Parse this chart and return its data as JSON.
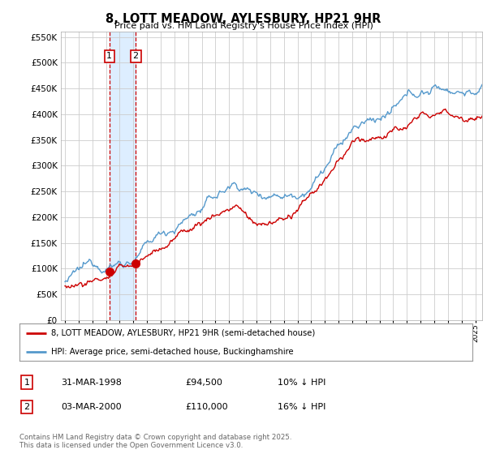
{
  "title": "8, LOTT MEADOW, AYLESBURY, HP21 9HR",
  "subtitle": "Price paid vs. HM Land Registry's House Price Index (HPI)",
  "ytick_vals": [
    0,
    50000,
    100000,
    150000,
    200000,
    250000,
    300000,
    350000,
    400000,
    450000,
    500000,
    550000
  ],
  "ylim": [
    0,
    560000
  ],
  "sale1_x": 1998.25,
  "sale1_y": 94500,
  "sale2_x": 2000.17,
  "sale2_y": 110000,
  "line_red_color": "#cc0000",
  "line_blue_color": "#5599cc",
  "shade_color": "#ddeeff",
  "bg_color": "#ffffff",
  "grid_color": "#cccccc",
  "legend_entry1": "8, LOTT MEADOW, AYLESBURY, HP21 9HR (semi-detached house)",
  "legend_entry2": "HPI: Average price, semi-detached house, Buckinghamshire",
  "table_row1": [
    "1",
    "31-MAR-1998",
    "£94,500",
    "10% ↓ HPI"
  ],
  "table_row2": [
    "2",
    "03-MAR-2000",
    "£110,000",
    "16% ↓ HPI"
  ],
  "footnote": "Contains HM Land Registry data © Crown copyright and database right 2025.\nThis data is licensed under the Open Government Licence v3.0.",
  "xlim_start": 1994.7,
  "xlim_end": 2025.5
}
